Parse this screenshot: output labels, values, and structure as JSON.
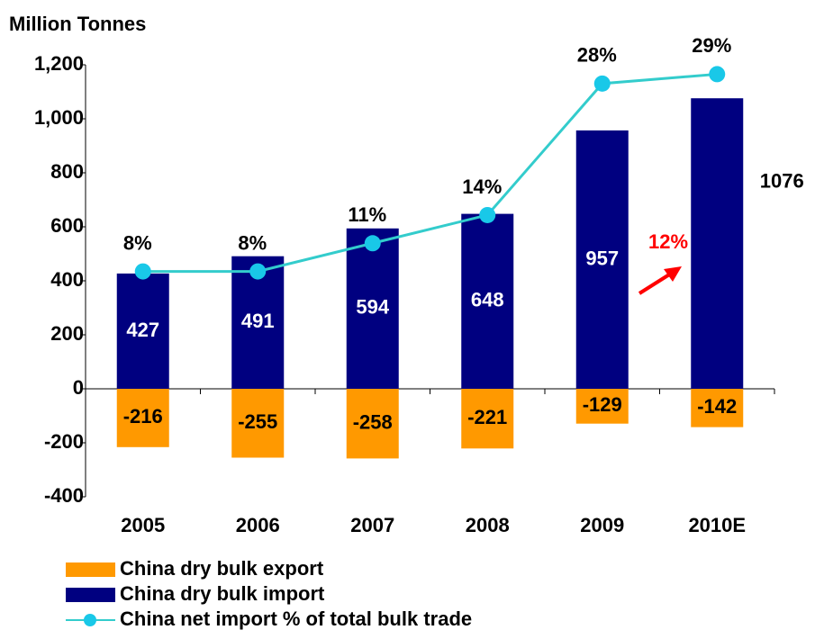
{
  "chart_data": {
    "type": "bar",
    "title": "Million Tonnes",
    "categories": [
      "2005",
      "2006",
      "2007",
      "2008",
      "2009",
      "2010E"
    ],
    "series": [
      {
        "name": "China dry bulk export",
        "color": "#ff9900",
        "values": [
          -216,
          -255,
          -258,
          -221,
          -129,
          -142
        ]
      },
      {
        "name": "China dry bulk import",
        "color": "#000080",
        "values": [
          427,
          491,
          594,
          648,
          957,
          1076
        ]
      },
      {
        "name": "China net import % of total bulk trade",
        "type": "line",
        "axis": "y2",
        "color": "#33cccc",
        "marker_color": "#19c8e8",
        "values": [
          8,
          8,
          11,
          14,
          28,
          29
        ],
        "value_labels": [
          "8%",
          "8%",
          "11%",
          "14%",
          "28%",
          "29%"
        ]
      }
    ],
    "ylim": [
      -400,
      1200
    ],
    "yticks": [
      -400,
      -200,
      0,
      200,
      400,
      600,
      800,
      {
        "value": 1000,
        "label": "1,000"
      },
      {
        "value": 1200,
        "label": "1,200"
      }
    ],
    "y2lim": [
      -16,
      30
    ],
    "annotations": [
      {
        "text": "12%",
        "color": "#ff0000"
      }
    ]
  }
}
